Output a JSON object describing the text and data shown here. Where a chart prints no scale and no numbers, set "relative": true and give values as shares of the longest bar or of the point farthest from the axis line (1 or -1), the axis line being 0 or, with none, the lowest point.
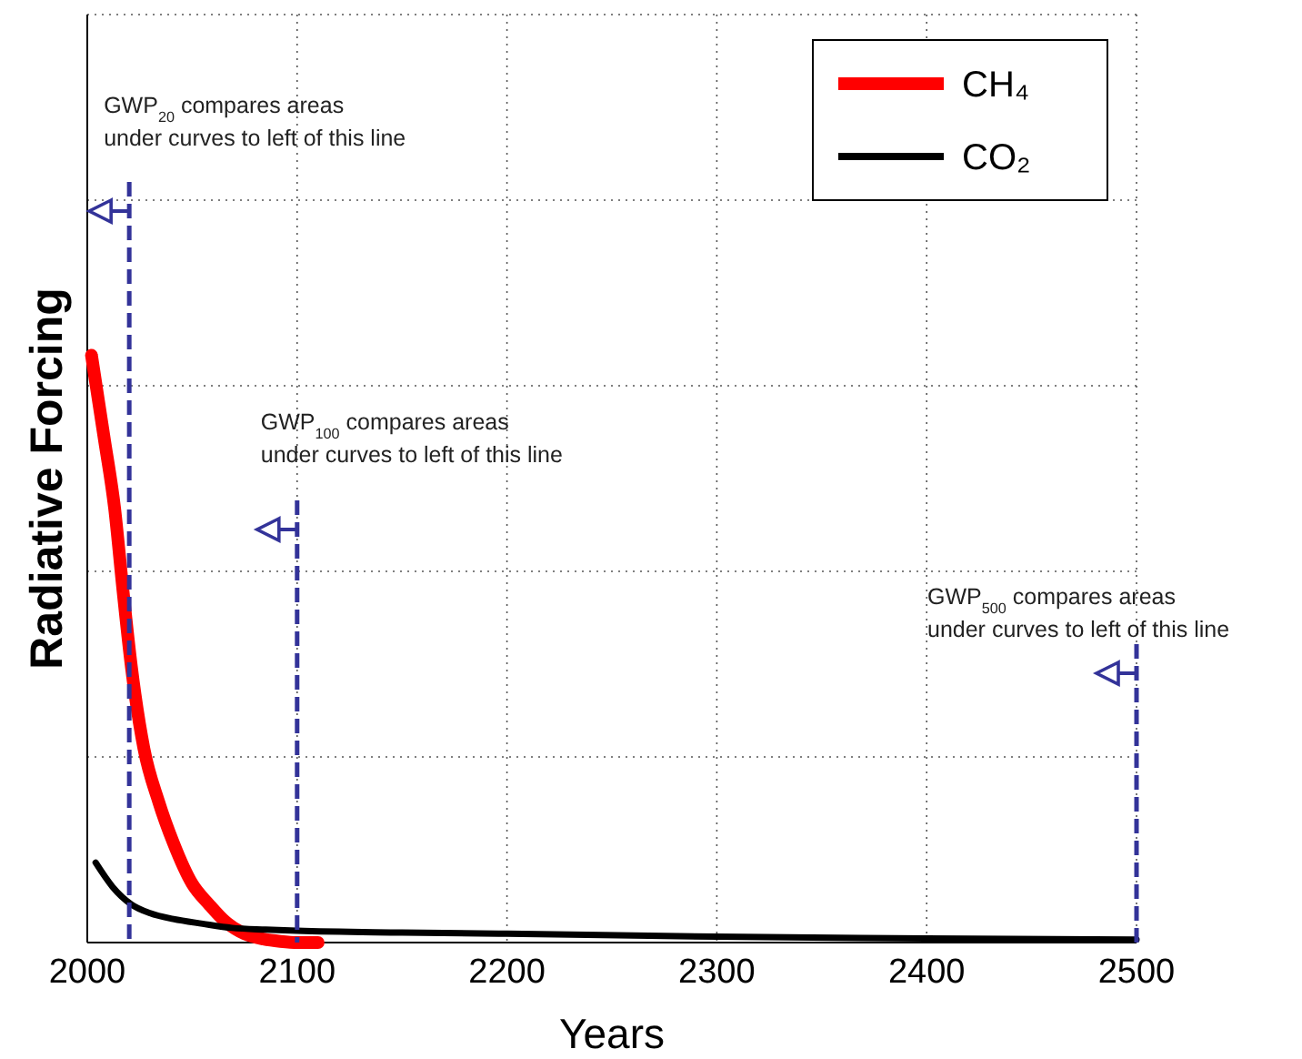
{
  "chart_data": {
    "type": "line",
    "xlabel": "Years",
    "ylabel": "Radiative Forcing",
    "relative": true,
    "xlim": [
      2000,
      2500
    ],
    "xticks": [
      2000,
      2100,
      2200,
      2300,
      2400,
      2500
    ],
    "grid": true,
    "legend": "top right",
    "line_style": "solid",
    "series": [
      {
        "name": "CH₄",
        "color": "#ff0000",
        "x": [
          2002,
          2008,
          2013,
          2017,
          2021,
          2027,
          2034,
          2041,
          2050,
          2058,
          2066,
          2075,
          2084,
          2092,
          2100,
          2110
        ],
        "values": [
          1.0,
          0.86,
          0.74,
          0.6,
          0.47,
          0.33,
          0.24,
          0.17,
          0.1,
          0.065,
          0.035,
          0.015,
          0.006,
          0.002,
          0,
          0
        ]
      },
      {
        "name": "CO₂",
        "color": "#000000",
        "x": [
          2004,
          2012,
          2021,
          2030,
          2041,
          2055,
          2069,
          2085,
          2100,
          2150,
          2200,
          2300,
          2400,
          2500
        ],
        "values": [
          0.136,
          0.095,
          0.065,
          0.05,
          0.04,
          0.032,
          0.025,
          0.022,
          0.02,
          0.017,
          0.015,
          0.01,
          0.007,
          0.005
        ]
      }
    ],
    "ref_lines": [
      {
        "axis": "x",
        "value": 2020,
        "label": "GWP$_{20}$ compares areas under curves to left of this line",
        "color": "#333399",
        "line_style": "dashed"
      },
      {
        "axis": "x",
        "value": 2100,
        "label": "GWP$_{100}$ compares areas under curves to left of this line",
        "color": "#333399",
        "line_style": "dashed"
      },
      {
        "axis": "x",
        "value": 2500,
        "label": "GWP$_{500}$ compares areas under curves to left of this line",
        "color": "#333399",
        "line_style": "dashed"
      }
    ]
  }
}
